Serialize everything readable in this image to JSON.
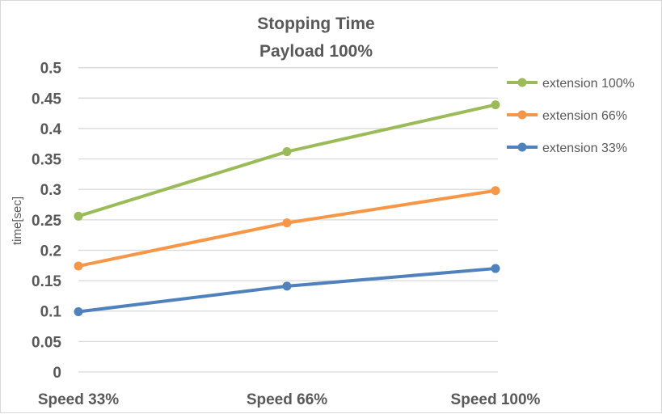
{
  "chart_data": {
    "type": "line",
    "title": [
      "Stopping Time",
      "Payload 100%"
    ],
    "xlabel": "",
    "ylabel": "time[sec]",
    "categories": [
      "Speed 33%",
      "Speed 66%",
      "Speed 100%"
    ],
    "ylim": [
      0,
      0.5
    ],
    "yticks": [
      "0",
      "0.05",
      "0.1",
      "0.15",
      "0.2",
      "0.25",
      "0.3",
      "0.35",
      "0.4",
      "0.45",
      "0.5"
    ],
    "grid": true,
    "legend_position": "right",
    "series": [
      {
        "name": "extension 100%",
        "color": "#9bbb59",
        "values": [
          0.256,
          0.362,
          0.439
        ]
      },
      {
        "name": "extension 66%",
        "color": "#f79646",
        "values": [
          0.174,
          0.245,
          0.298
        ]
      },
      {
        "name": "extension 33%",
        "color": "#4f81bd",
        "values": [
          0.099,
          0.141,
          0.17
        ]
      }
    ]
  }
}
